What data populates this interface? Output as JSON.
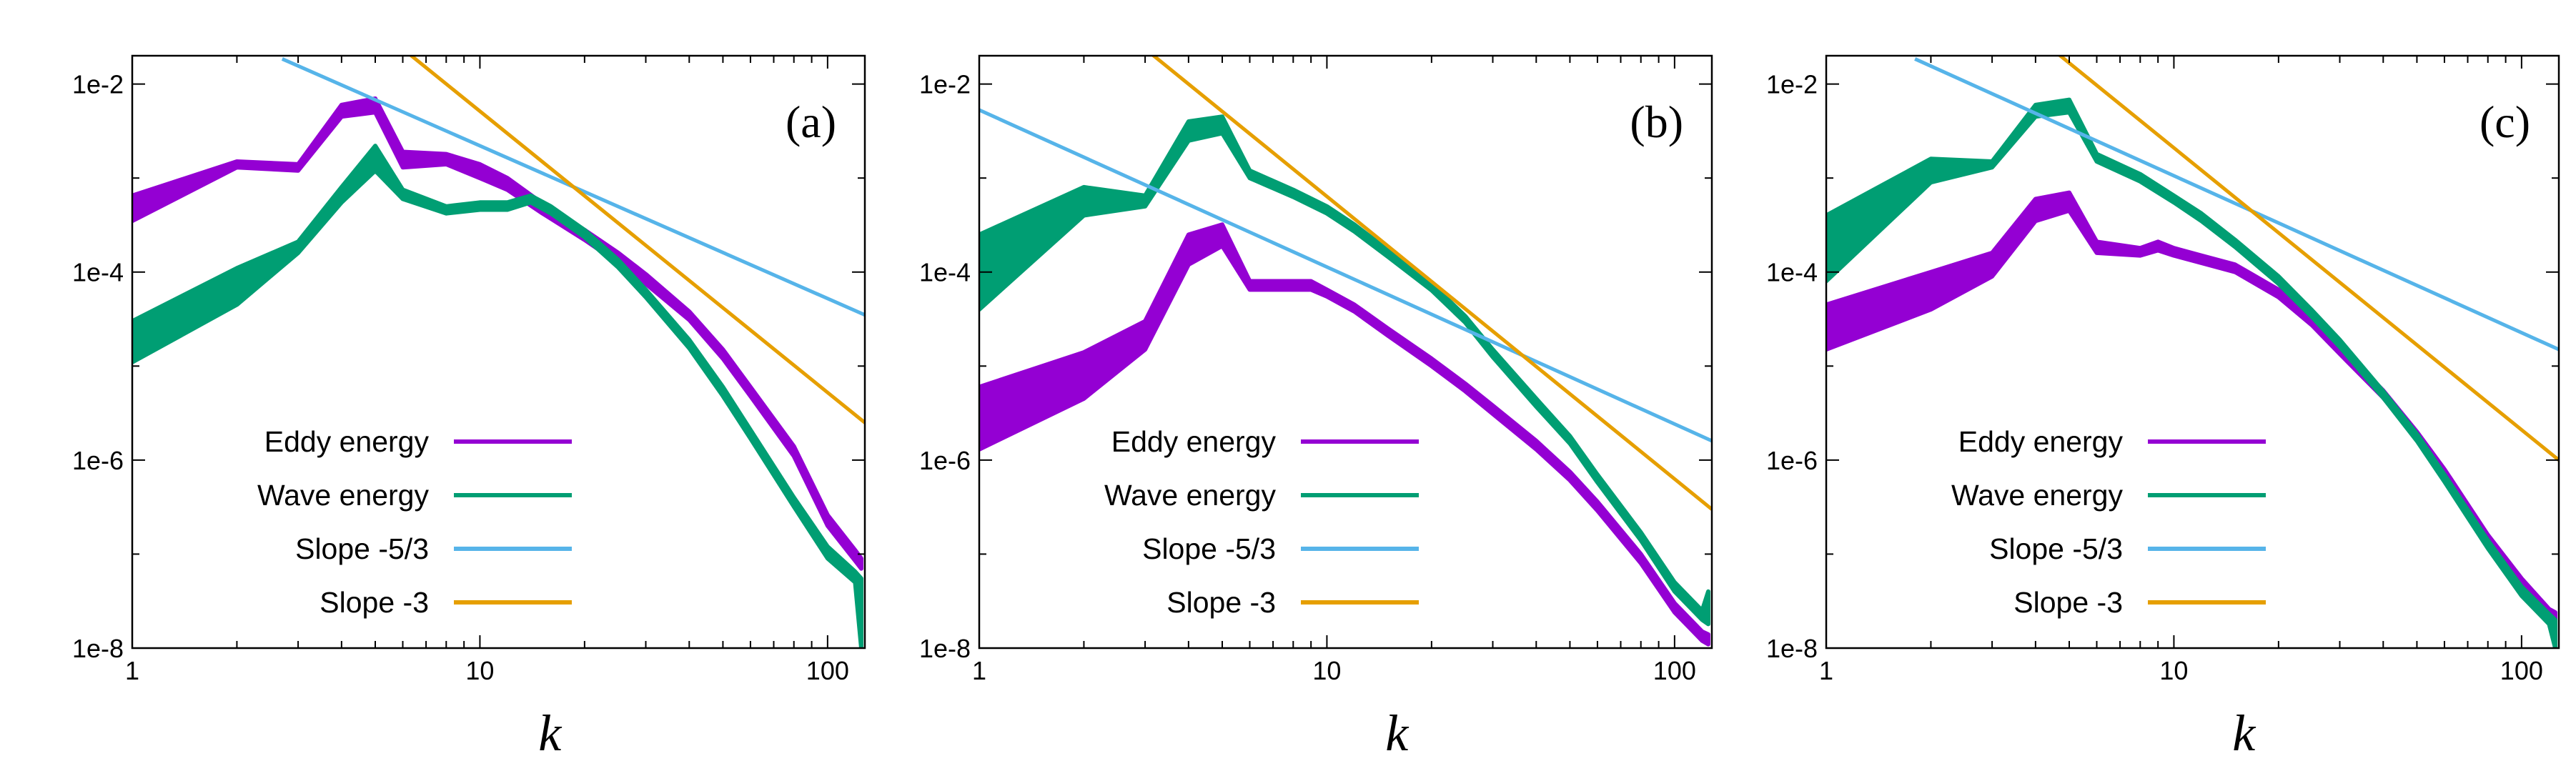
{
  "colors": {
    "eddy": "#9400D3",
    "wave": "#009E73",
    "slope53": "#56B4E9",
    "slope3": "#E69F00"
  },
  "chart_data": [
    {
      "type": "line",
      "panel_label": "(a)",
      "xlabel": "k",
      "ylabel": "",
      "xscale": "log",
      "yscale": "log",
      "xlim": [
        1,
        128
      ],
      "ylim": [
        1e-08,
        0.02
      ],
      "xticks": [
        1,
        10,
        100
      ],
      "xtick_labels": [
        "1",
        "10",
        "100"
      ],
      "yticks": [
        1e-08,
        1e-06,
        0.0001,
        0.01
      ],
      "ytick_labels": [
        "1e-8",
        "1e-6",
        "1e-4",
        "1e-2"
      ],
      "legend": [
        "Eddy energy",
        "Wave energy",
        "Slope -5/3",
        "Slope -3"
      ],
      "series": [
        {
          "name": "Eddy energy",
          "color_key": "eddy",
          "x": [
            1,
            2,
            3,
            4,
            5,
            6,
            8,
            10,
            12,
            15,
            20,
            25,
            30,
            40,
            50,
            60,
            80,
            100,
            120,
            125
          ],
          "upper": [
            0.00065,
            0.0015,
            0.0014,
            0.006,
            0.007,
            0.0019,
            0.0018,
            0.0014,
            0.001,
            0.00055,
            0.00028,
            0.00016,
            9.5e-05,
            3.8e-05,
            1.5e-05,
            6e-06,
            1.4e-06,
            2.6e-07,
            1.1e-07,
            9e-08
          ],
          "lower": [
            0.00035,
            0.0013,
            0.0012,
            0.0045,
            0.005,
            0.0013,
            0.0014,
            0.001,
            0.00075,
            0.00043,
            0.00022,
            0.000125,
            7.5e-05,
            3.1e-05,
            1.2e-05,
            4.8e-06,
            1.1e-06,
            2e-07,
            8.5e-08,
            7e-08
          ]
        },
        {
          "name": "Wave energy",
          "color_key": "wave",
          "x": [
            1,
            2,
            3,
            4,
            5,
            6,
            8,
            10,
            12,
            14,
            16,
            20,
            25,
            30,
            40,
            50,
            60,
            80,
            100,
            120,
            125
          ],
          "upper": [
            3e-05,
            0.00011,
            0.00021,
            0.0008,
            0.0022,
            0.00075,
            0.0005,
            0.00055,
            0.00055,
            0.00065,
            0.0005,
            0.00028,
            0.000135,
            6.5e-05,
            1.9e-05,
            6e-06,
            2.1e-06,
            4e-07,
            1.2e-07,
            6.5e-08,
            5.5e-08
          ],
          "lower": [
            1.1e-05,
            4.5e-05,
            0.00016,
            0.00055,
            0.0012,
            0.0006,
            0.00042,
            0.00046,
            0.00046,
            0.00055,
            0.00042,
            0.000235,
            0.000112,
            5.4e-05,
            1.55e-05,
            4.8e-06,
            1.7e-06,
            3.2e-07,
            9e-08,
            5e-08,
            1e-08
          ]
        },
        {
          "name": "Slope -5/3",
          "color_key": "slope53",
          "x": [
            2.7,
            128
          ],
          "y": [
            0.0185,
            3.5e-05
          ]
        },
        {
          "name": "Slope -3",
          "color_key": "slope3",
          "x": [
            6.2,
            128
          ],
          "y": [
            0.0215,
            2.5e-06
          ]
        }
      ]
    },
    {
      "type": "line",
      "panel_label": "(b)",
      "xlabel": "k",
      "ylabel": "",
      "xscale": "log",
      "yscale": "log",
      "xlim": [
        1,
        128
      ],
      "ylim": [
        1e-08,
        0.02
      ],
      "xticks": [
        1,
        10,
        100
      ],
      "xtick_labels": [
        "1",
        "10",
        "100"
      ],
      "yticks": [
        1e-08,
        1e-06,
        0.0001,
        0.01
      ],
      "ytick_labels": [
        "1e-8",
        "1e-6",
        "1e-4",
        "1e-2"
      ],
      "legend": [
        "Eddy energy",
        "Wave energy",
        "Slope -5/3",
        "Slope -3"
      ],
      "series": [
        {
          "name": "Eddy energy",
          "color_key": "eddy",
          "x": [
            1,
            2,
            3,
            4,
            5,
            6,
            8,
            9,
            10,
            12,
            15,
            20,
            25,
            30,
            40,
            50,
            60,
            80,
            100,
            120,
            125
          ],
          "upper": [
            6e-06,
            1.4e-05,
            3e-05,
            0.00025,
            0.00032,
            8e-05,
            8e-05,
            8e-05,
            6.5e-05,
            4.5e-05,
            2.5e-05,
            1.2e-05,
            6.5e-06,
            3.8e-06,
            1.6e-06,
            7.5e-07,
            3.6e-07,
            1e-07,
            3e-08,
            1.5e-08,
            1.4e-08
          ],
          "lower": [
            1.3e-06,
            4.5e-06,
            1.5e-05,
            0.00012,
            0.00019,
            6.5e-05,
            6.5e-05,
            6.5e-05,
            5.5e-05,
            3.8e-05,
            2.1e-05,
            1e-05,
            5.4e-06,
            3.1e-06,
            1.3e-06,
            6.1e-07,
            2.9e-07,
            8e-08,
            2.4e-08,
            1.2e-08,
            1.1e-08
          ]
        },
        {
          "name": "Wave energy",
          "color_key": "wave",
          "x": [
            1,
            2,
            3,
            4,
            5,
            6,
            8,
            10,
            12,
            15,
            20,
            25,
            30,
            40,
            50,
            60,
            80,
            100,
            120,
            125
          ],
          "upper": [
            0.00025,
            0.0008,
            0.00065,
            0.004,
            0.0045,
            0.0012,
            0.00075,
            0.0005,
            0.00032,
            0.00017,
            7.5e-05,
            3.4e-05,
            1.5e-05,
            4.5e-06,
            1.8e-06,
            7e-07,
            1.7e-07,
            5e-08,
            2.5e-08,
            4e-08
          ],
          "lower": [
            4e-05,
            0.0004,
            0.0005,
            0.0025,
            0.003,
            0.001,
            0.00063,
            0.00042,
            0.00027,
            0.000145,
            6.4e-05,
            2.9e-05,
            1.25e-05,
            3.7e-06,
            1.5e-06,
            5.8e-07,
            1.4e-07,
            4e-08,
            2e-08,
            1.8e-08
          ]
        },
        {
          "name": "Slope -5/3",
          "color_key": "slope53",
          "x": [
            1,
            128
          ],
          "y": [
            0.0053,
            1.6e-06
          ]
        },
        {
          "name": "Slope -3",
          "color_key": "slope3",
          "x": [
            3.1,
            128
          ],
          "y": [
            0.0215,
            3e-07
          ]
        }
      ]
    },
    {
      "type": "line",
      "panel_label": "(c)",
      "xlabel": "k",
      "ylabel": "",
      "xscale": "log",
      "yscale": "log",
      "xlim": [
        1,
        128
      ],
      "ylim": [
        1e-08,
        0.02
      ],
      "xticks": [
        1,
        10,
        100
      ],
      "xtick_labels": [
        "1",
        "10",
        "100"
      ],
      "yticks": [
        1e-08,
        1e-06,
        0.0001,
        0.01
      ],
      "ytick_labels": [
        "1e-8",
        "1e-6",
        "1e-4",
        "1e-2"
      ],
      "legend": [
        "Eddy energy",
        "Wave energy",
        "Slope -5/3",
        "Slope -3"
      ],
      "series": [
        {
          "name": "Eddy energy",
          "color_key": "eddy",
          "x": [
            1,
            2,
            3,
            4,
            5,
            6,
            8,
            9,
            10,
            12,
            15,
            20,
            25,
            30,
            40,
            50,
            60,
            80,
            100,
            120,
            125
          ],
          "upper": [
            4.5e-05,
            0.0001,
            0.00016,
            0.0006,
            0.0007,
            0.00021,
            0.00018,
            0.00021,
            0.00018,
            0.00015,
            0.00012,
            6.5e-05,
            3.2e-05,
            1.6e-05,
            5.5e-06,
            2e-06,
            8e-07,
            1.6e-07,
            5.5e-08,
            2.6e-08,
            2.4e-08
          ],
          "lower": [
            1.5e-05,
            4e-05,
            9e-05,
            0.00035,
            0.00045,
            0.00016,
            0.00015,
            0.00017,
            0.00015,
            0.000125,
            0.0001,
            5.4e-05,
            2.7e-05,
            1.35e-05,
            4.6e-06,
            1.7e-06,
            6.6e-07,
            1.3e-07,
            4.5e-08,
            2.1e-08,
            1.9e-08
          ]
        },
        {
          "name": "Wave energy",
          "color_key": "wave",
          "x": [
            1,
            2,
            3,
            4,
            5,
            6,
            8,
            10,
            12,
            15,
            20,
            25,
            30,
            40,
            50,
            60,
            80,
            100,
            120,
            125
          ],
          "upper": [
            0.0004,
            0.0016,
            0.0015,
            0.006,
            0.0068,
            0.0018,
            0.0011,
            0.00065,
            0.00042,
            0.00022,
            9e-05,
            3.9e-05,
            1.9e-05,
            5.4e-06,
            1.9e-06,
            7e-07,
            1.4e-07,
            4.5e-08,
            2.3e-08,
            2e-08
          ],
          "lower": [
            8e-05,
            0.0009,
            0.0013,
            0.0045,
            0.005,
            0.0015,
            0.00092,
            0.00055,
            0.00035,
            0.000185,
            7.5e-05,
            3.3e-05,
            1.6e-05,
            4.6e-06,
            1.6e-06,
            5.9e-07,
            1.15e-07,
            3.6e-08,
            1.8e-08,
            1e-08
          ]
        },
        {
          "name": "Slope -5/3",
          "color_key": "slope53",
          "x": [
            1.8,
            128
          ],
          "y": [
            0.0185,
            1.5e-05
          ]
        },
        {
          "name": "Slope -3",
          "color_key": "slope3",
          "x": [
            4.6,
            128
          ],
          "y": [
            0.0215,
            1e-06
          ]
        }
      ]
    }
  ]
}
